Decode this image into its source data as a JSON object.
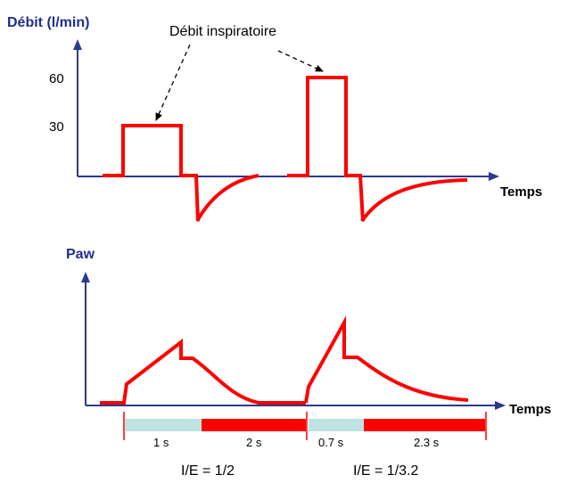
{
  "top_chart": {
    "ylabel": "Débit (l/min)",
    "xlabel": "Temps",
    "tick_60": "60",
    "tick_30": "30",
    "annotation": "Débit inspiratoire"
  },
  "bottom_chart": {
    "ylabel": "Paw",
    "xlabel": "Temps"
  },
  "timeline": {
    "cycle1": {
      "insp": "1 s",
      "exp": "2 s",
      "ratio": "I/E = 1/2"
    },
    "cycle2": {
      "insp": "0.7 s",
      "exp": "2.3 s",
      "ratio": "I/E = 1/3.2"
    }
  },
  "colors": {
    "waveform": "#ff0000",
    "axis": "#2a3a8c",
    "inspiration_bar": "#bfe3e3",
    "expiration_bar": "#ff0000"
  }
}
